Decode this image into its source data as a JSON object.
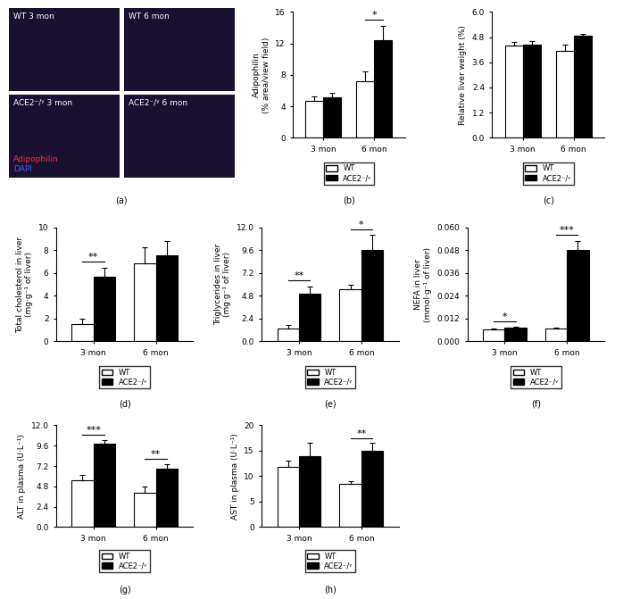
{
  "image_panel": {
    "label": "(a)",
    "panels": [
      "WT 3 mon",
      "WT 6 mon",
      "ACE2⁻/ʸ 3 mon",
      "ACE2⁻/ʸ 6 mon"
    ],
    "stain_labels": [
      {
        "text": "Adipophilin",
        "color": "#ff3030"
      },
      {
        "text": "DAPI",
        "color": "#4060ff"
      }
    ]
  },
  "chart_data": [
    {
      "type": "bar",
      "panel": "(b)",
      "ylabel": "Adipophilin\n(% area/view field)",
      "categories": [
        "3 mon",
        "6 mon"
      ],
      "series": [
        {
          "name": "WT",
          "color": "#ffffff",
          "values": [
            4.7,
            7.2
          ],
          "errors": [
            0.6,
            1.2
          ]
        },
        {
          "name": "ACE2⁻/ʸ",
          "color": "#000000",
          "values": [
            5.1,
            12.4
          ],
          "errors": [
            0.6,
            1.8
          ]
        }
      ],
      "significance": [
        null,
        "*"
      ],
      "ylim": [
        0,
        16
      ],
      "yticks": [
        0,
        4,
        8,
        12,
        16
      ],
      "legend": "upper center"
    },
    {
      "type": "bar",
      "panel": "(c)",
      "ylabel": "Relative liver weight (%)",
      "categories": [
        "3 mon",
        "6 mon"
      ],
      "series": [
        {
          "name": "WT",
          "color": "#ffffff",
          "values": [
            4.4,
            4.15
          ],
          "errors": [
            0.15,
            0.3
          ]
        },
        {
          "name": "ACE2⁻/ʸ",
          "color": "#000000",
          "values": [
            4.45,
            4.85
          ],
          "errors": [
            0.15,
            0.1
          ]
        }
      ],
      "significance": [
        null,
        null
      ],
      "ylim": [
        0,
        6
      ],
      "yticks": [
        {
          "value": 0,
          "label": "0.0"
        },
        1.2,
        2.4,
        3.6,
        4.8,
        {
          "value": 6,
          "label": "6.0"
        }
      ],
      "legend": "upper center"
    },
    {
      "type": "bar",
      "panel": "(d)",
      "ylabel": "Total cholesterol in liver\n(mg·g⁻¹ of liver)",
      "categories": [
        "3 mon",
        "6 mon"
      ],
      "series": [
        {
          "name": "WT",
          "color": "#ffffff",
          "values": [
            1.5,
            6.9
          ],
          "errors": [
            0.5,
            1.4
          ]
        },
        {
          "name": "ACE2⁻/ʸ",
          "color": "#000000",
          "values": [
            5.7,
            7.6
          ],
          "errors": [
            0.8,
            1.2
          ]
        }
      ],
      "significance": [
        "**",
        null
      ],
      "ylim": [
        0,
        10
      ],
      "yticks": [
        0,
        2,
        4,
        6,
        8,
        10
      ],
      "legend": "upper center"
    },
    {
      "type": "bar",
      "panel": "(e)",
      "ylabel": "Triglycerides in liver\n(mg·g⁻¹ of liver)",
      "categories": [
        "3 mon",
        "6 mon"
      ],
      "series": [
        {
          "name": "WT",
          "color": "#ffffff",
          "values": [
            1.4,
            5.5
          ],
          "errors": [
            0.3,
            0.5
          ]
        },
        {
          "name": "ACE2⁻/ʸ",
          "color": "#000000",
          "values": [
            5.0,
            9.6
          ],
          "errors": [
            0.8,
            1.6
          ]
        }
      ],
      "significance": [
        "**",
        "*"
      ],
      "ylim": [
        0,
        12
      ],
      "yticks": [
        {
          "value": 0,
          "label": "0.0"
        },
        2.4,
        4.8,
        7.2,
        9.6,
        {
          "value": 12,
          "label": "12.0"
        }
      ],
      "legend": "upper center"
    },
    {
      "type": "bar",
      "panel": "(f)",
      "ylabel": "NEFA in liver\n(mmol·g⁻¹ of liver)",
      "categories": [
        "3 mon",
        "6 mon"
      ],
      "series": [
        {
          "name": "WT",
          "color": "#ffffff",
          "values": [
            0.0062,
            0.007
          ],
          "errors": [
            0.0004,
            0.0002
          ]
        },
        {
          "name": "ACE2⁻/ʸ",
          "color": "#000000",
          "values": [
            0.0072,
            0.048
          ],
          "errors": [
            0.0004,
            0.005
          ]
        }
      ],
      "significance": [
        "*",
        "***"
      ],
      "ylim": [
        0,
        0.06
      ],
      "yticks": [
        {
          "value": 0,
          "label": "0.000"
        },
        {
          "value": 0.012,
          "label": "0.012"
        },
        {
          "value": 0.024,
          "label": "0.024"
        },
        {
          "value": 0.036,
          "label": "0.036"
        },
        {
          "value": 0.048,
          "label": "0.048"
        },
        {
          "value": 0.06,
          "label": "0.060"
        }
      ],
      "legend": "upper center"
    },
    {
      "type": "bar",
      "panel": "(g)",
      "ylabel": "ALT in plasma (U·L⁻¹)",
      "categories": [
        "3 mon",
        "6 mon"
      ],
      "series": [
        {
          "name": "WT",
          "color": "#ffffff",
          "values": [
            5.5,
            4.1
          ],
          "errors": [
            0.7,
            0.7
          ]
        },
        {
          "name": "ACE2⁻/ʸ",
          "color": "#000000",
          "values": [
            9.8,
            6.9
          ],
          "errors": [
            0.5,
            0.5
          ]
        }
      ],
      "significance": [
        "***",
        "**"
      ],
      "ylim": [
        0,
        12
      ],
      "yticks": [
        {
          "value": 0,
          "label": "0.0"
        },
        2.4,
        4.8,
        7.2,
        9.6,
        {
          "value": 12,
          "label": "12.0"
        }
      ],
      "legend": "upper center"
    },
    {
      "type": "bar",
      "panel": "(h)",
      "ylabel": "AST in plasma (U·L⁻¹)",
      "categories": [
        "3 mon",
        "6 mon"
      ],
      "series": [
        {
          "name": "WT",
          "color": "#ffffff",
          "values": [
            11.8,
            8.5
          ],
          "errors": [
            1.3,
            0.6
          ]
        },
        {
          "name": "ACE2⁻/ʸ",
          "color": "#000000",
          "values": [
            13.9,
            15.0
          ],
          "errors": [
            2.7,
            1.5
          ]
        }
      ],
      "significance": [
        null,
        "**"
      ],
      "ylim": [
        0,
        20
      ],
      "yticks": [
        0,
        5,
        10,
        15,
        20
      ],
      "legend": "upper center"
    }
  ]
}
